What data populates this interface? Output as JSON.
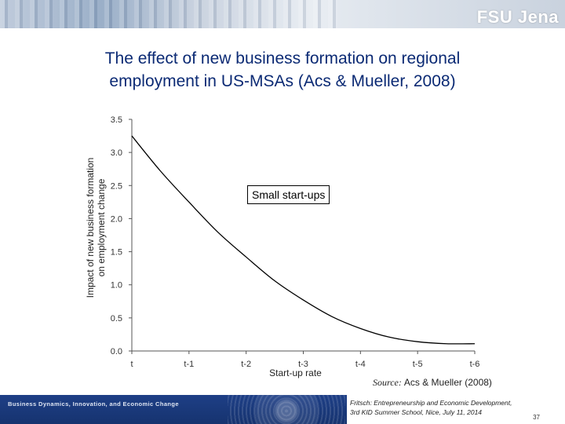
{
  "header": {
    "brand": "FSU Jena"
  },
  "slide": {
    "title_line1": "The effect of new business formation on regional",
    "title_line2": "employment in US-MSAs (Acs & Mueller, 2008)"
  },
  "chart_data": {
    "type": "line",
    "title": "",
    "xlabel": "Start-up rate",
    "ylabel_line1": "Impact of new business formation",
    "ylabel_line2": "on employment change",
    "x_categories": [
      "t",
      "t-1",
      "t-2",
      "t-3",
      "t-4",
      "t-5",
      "t-6"
    ],
    "y_ticks": [
      0.0,
      0.5,
      1.0,
      1.5,
      2.0,
      2.5,
      3.0,
      3.5
    ],
    "y_tick_labels": [
      "0.0",
      "0.5",
      "1.0",
      "1.5",
      "2.0",
      "2.5",
      "3.0",
      "3.5"
    ],
    "ylim": [
      0,
      3.5
    ],
    "grid": false,
    "series": [
      {
        "x": [
          "t",
          "t-0.5",
          "t-1",
          "t-1.5",
          "t-2",
          "t-2.5",
          "t-3",
          "t-3.5",
          "t-4",
          "t-4.5",
          "t-5",
          "t-5.5",
          "t-6"
        ],
        "values": [
          3.25,
          2.72,
          2.25,
          1.8,
          1.42,
          1.06,
          0.77,
          0.52,
          0.34,
          0.21,
          0.14,
          0.11,
          0.11
        ],
        "color": "#000000"
      }
    ],
    "annotation": "Small start-ups"
  },
  "source": {
    "label": "Source:",
    "text": "Acs & Mueller (2008)"
  },
  "footer": {
    "left_text": "Business Dynamics, Innovation, and Economic Change",
    "credit_line1": "Fritsch: Entrepreneurship and Economic Development,",
    "credit_line2": "3rd KID Summer School, Nice, July 11, 2014",
    "page_number": "37"
  }
}
